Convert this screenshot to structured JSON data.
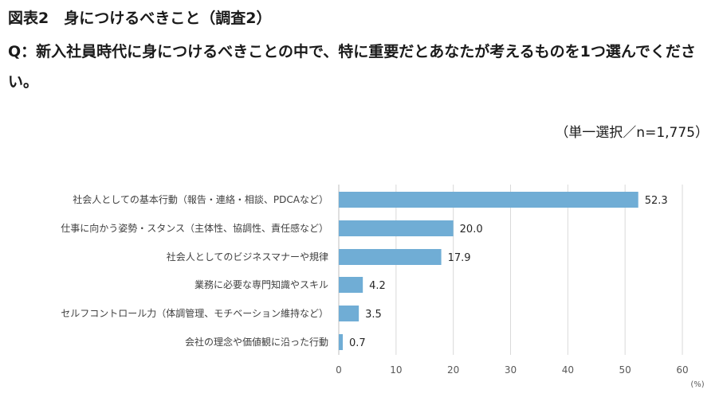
{
  "header": {
    "title": "図表2　身につけるべきこと（調査2）",
    "question": "Q：新入社員時代に身につけるべきことの中で、特に重要だとあなたが考えるものを1つ選んでください。",
    "sample_note": "（単一選択／n=1,775）"
  },
  "chart_data": {
    "type": "bar",
    "orientation": "horizontal",
    "title": "図表2　身につけるべきこと（調査2）",
    "xlabel": "(%)",
    "ylabel": "",
    "xlim": [
      0,
      60
    ],
    "xticks": [
      0,
      10,
      20,
      30,
      40,
      50,
      60
    ],
    "grid": true,
    "bar_color": "#70add5",
    "grid_color": "#d9d9d9",
    "categories": [
      "社会人としての基本行動（報告・連絡・相談、PDCAなど）",
      "仕事に向かう姿勢・スタンス（主体性、協調性、責任感など）",
      "社会人としてのビジネスマナーや規律",
      "業務に必要な専門知識やスキル",
      "セルフコントロール力（体調管理、モチベーション維持など）",
      "会社の理念や価値観に沿った行動"
    ],
    "values": [
      52.3,
      20.0,
      17.9,
      4.2,
      3.5,
      0.7
    ],
    "value_labels": [
      "52.3",
      "20.0",
      "17.9",
      "4.2",
      "3.5",
      "0.7"
    ]
  }
}
